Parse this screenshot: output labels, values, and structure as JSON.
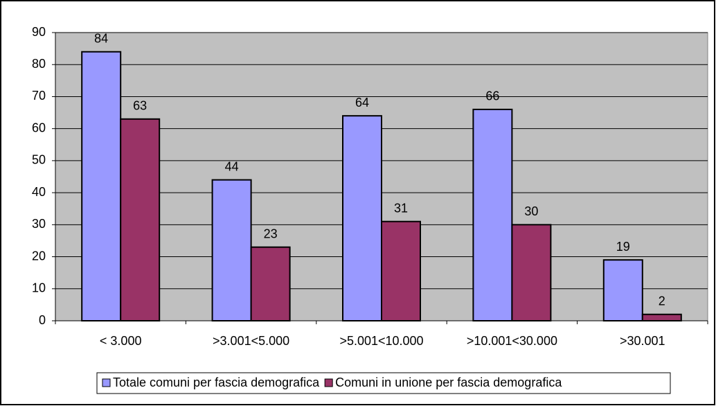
{
  "chart_data": {
    "type": "bar",
    "categories": [
      "< 3.000",
      ">3.001<5.000",
      ">5.001<10.000",
      ">10.001<30.000",
      ">30.001"
    ],
    "series": [
      {
        "name": "Totale comuni per fascia demografica",
        "color": "#9999ff",
        "values": [
          84,
          44,
          64,
          66,
          19
        ]
      },
      {
        "name": "Comuni in unione per fascia demografica",
        "color": "#993366",
        "values": [
          63,
          23,
          31,
          30,
          2
        ]
      }
    ],
    "ylim": [
      0,
      90
    ],
    "yticks": [
      0,
      10,
      20,
      30,
      40,
      50,
      60,
      70,
      80,
      90
    ],
    "grid": true,
    "legend": "bottom"
  }
}
